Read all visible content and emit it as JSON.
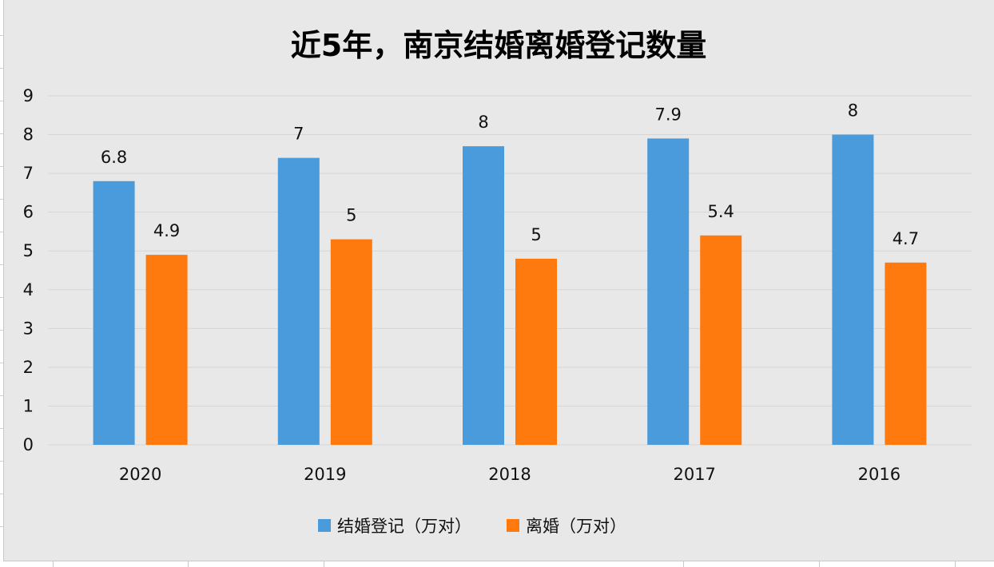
{
  "chart_data": {
    "type": "bar",
    "title": "近5年，南京结婚离婚登记数量",
    "categories": [
      "2020",
      "2019",
      "2018",
      "2017",
      "2016"
    ],
    "series": [
      {
        "name": "结婚登记（万对）",
        "color": "#4a9bdb",
        "values": [
          6.8,
          7.4,
          7.7,
          7.9,
          8.0
        ],
        "data_labels": [
          "6.8",
          "7",
          "8",
          "7.9",
          "8"
        ]
      },
      {
        "name": "离婚（万对）",
        "color": "#ff7a0e",
        "values": [
          4.9,
          5.3,
          4.8,
          5.4,
          4.7
        ],
        "data_labels": [
          "4.9",
          "5",
          "5",
          "5.4",
          "4.7"
        ]
      }
    ],
    "y_ticks": [
      "0",
      "1",
      "2",
      "3",
      "4",
      "5",
      "6",
      "7",
      "8",
      "9"
    ],
    "ylim": [
      0,
      9
    ],
    "grid": true,
    "legend_position": "bottom"
  },
  "colors": {
    "background": "#e9e8e8",
    "gridline": "#d6d6d6"
  }
}
